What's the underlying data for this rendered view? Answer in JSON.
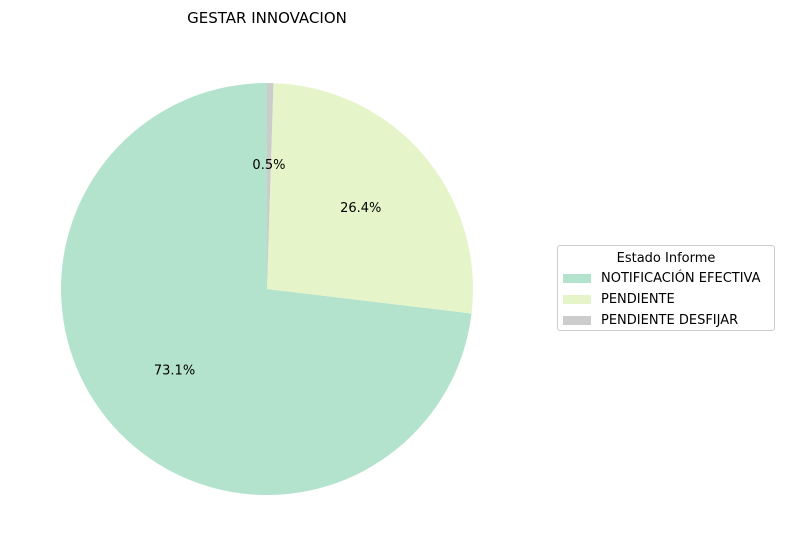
{
  "chart_data": {
    "type": "pie",
    "title": "GESTAR INNOVACION",
    "legend_title": "Estado Informe",
    "legend_placement": "right",
    "start_angle": "top, counter-clockwise",
    "slices": [
      {
        "label": "NOTIFICACIÓN EFECTIVA",
        "value": 73.1,
        "pct_label": "73.1%",
        "color": "#b3e2cd"
      },
      {
        "label": "PENDIENTE",
        "value": 26.4,
        "pct_label": "26.4%",
        "color": "#e6f5c9"
      },
      {
        "label": "PENDIENTE DESFIJAR",
        "value": 0.5,
        "pct_label": "0.5%",
        "color": "#cccccc"
      }
    ]
  }
}
